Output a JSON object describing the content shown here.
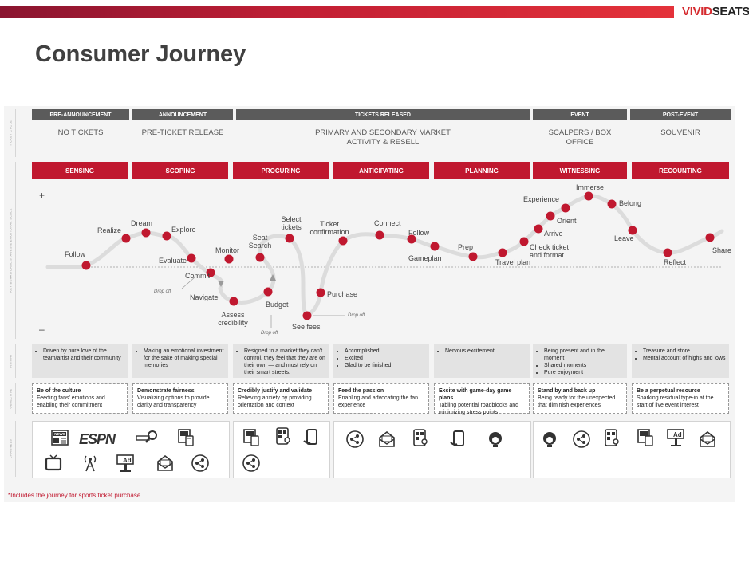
{
  "header": {
    "brand_part1": "VIVID",
    "brand_part2": "SEATS",
    "title": "Consumer Journey"
  },
  "row_labels": [
    "TICKET CYCLE",
    "KEY BEHAVIORAL STAGES & EMOTIONAL SCALE",
    "INSIGHT",
    "OBJECTIVE",
    "CHANNELS"
  ],
  "phases": [
    "PRE-ANNOUNCEMENT",
    "ANNOUNCEMENT",
    "TICKETS RELEASED",
    "EVENT",
    "POST-EVENT"
  ],
  "subphases": [
    "NO TICKETS",
    "PRE-TICKET RELEASE",
    "PRIMARY AND SECONDARY MARKET ACTIVITY & RESELL",
    "SCALPERS / BOX OFFICE",
    "SOUVENIR"
  ],
  "stages": [
    "SENSING",
    "SCOPING",
    "PROCURING",
    "ANTICIPATING",
    "PLANNING",
    "WITNESSING",
    "RECOUNTING"
  ],
  "scale": {
    "plus": "+",
    "minus": "–"
  },
  "milestones": [
    "Follow",
    "Realize",
    "Dream",
    "Explore",
    "Evaluate",
    "Commit",
    "Navigate",
    "Monitor",
    "Assess credibility",
    "Seat Search",
    "Budget",
    "Select tickets",
    "See fees",
    "Purchase",
    "Ticket confirmation",
    "Connect",
    "Follow",
    "Gameplan",
    "Prep",
    "Travel plan",
    "Check ticket and format",
    "Arrive",
    "Orient",
    "Experience",
    "Immerse",
    "Belong",
    "Leave",
    "Reflect",
    "Share"
  ],
  "drop_offs": [
    "Drop off",
    "Drop off",
    "Drop off"
  ],
  "emotions": [
    [
      "Driven by pure love of the team/artist and their community"
    ],
    [
      "Making an emotional investment for the sake of making special memories"
    ],
    [
      "Resigned to a market they can't control, they feel that they are on their own — and must rely on their smart streets."
    ],
    [
      "Accomplished",
      "Excited",
      "Glad to be finished"
    ],
    [
      "Nervous excitement"
    ],
    [
      "Being present and in the moment",
      "Shared moments",
      "Pure enjoyment"
    ],
    [
      "Treasure and store",
      "Mental account of highs and lows"
    ]
  ],
  "strategies": [
    {
      "head": "Be of the culture",
      "body": "Feeding fans' emotions and enabling their commitment"
    },
    {
      "head": "Demonstrate fairness",
      "body": "Visualizing options to provide clarity and transparency"
    },
    {
      "head": "Credibly justify and validate",
      "body": "Relieving anxiety by providing orientation and context"
    },
    {
      "head": "Feed the passion",
      "body": "Enabling and advocating the fan experience"
    },
    {
      "head": "Excite with game-day game plans",
      "body": "Tabling potential roadblocks and minimizing stress points"
    },
    {
      "head": "Stand by and back up",
      "body": "Being ready for the unexpected that diminish experiences"
    },
    {
      "head": "Be a perpetual resource",
      "body": "Sparking residual type-in at the start of live event interest"
    }
  ],
  "channel_icons": {
    "sensing_scoping": [
      "news-icon",
      "espn-logo",
      "search-icon",
      "mobile-web-icon",
      "tv-icon",
      "radio-tower-icon",
      "billboard-icon",
      "email-icon",
      "share-icon"
    ],
    "procuring": [
      "mobile-web-icon",
      "app-icon",
      "mobile-icon",
      "share-icon"
    ],
    "anticipating_planning": [
      "share-icon",
      "email-icon",
      "app-icon",
      "mobile-icon",
      "support-icon"
    ],
    "witnessing_recounting": [
      "support-icon",
      "share-icon",
      "app-icon",
      "mobile-web-icon",
      "billboard-icon",
      "email-icon"
    ]
  },
  "channel_texts": {
    "espn": "ESPN",
    "news": "NEWS",
    "ad": "Ad"
  },
  "footnote": "*Includes the journey for sports ticket purchase.",
  "colors": {
    "accent": "#c0182f",
    "phase_bar": "#5b5b5b",
    "curve": "#dcdcdc"
  }
}
